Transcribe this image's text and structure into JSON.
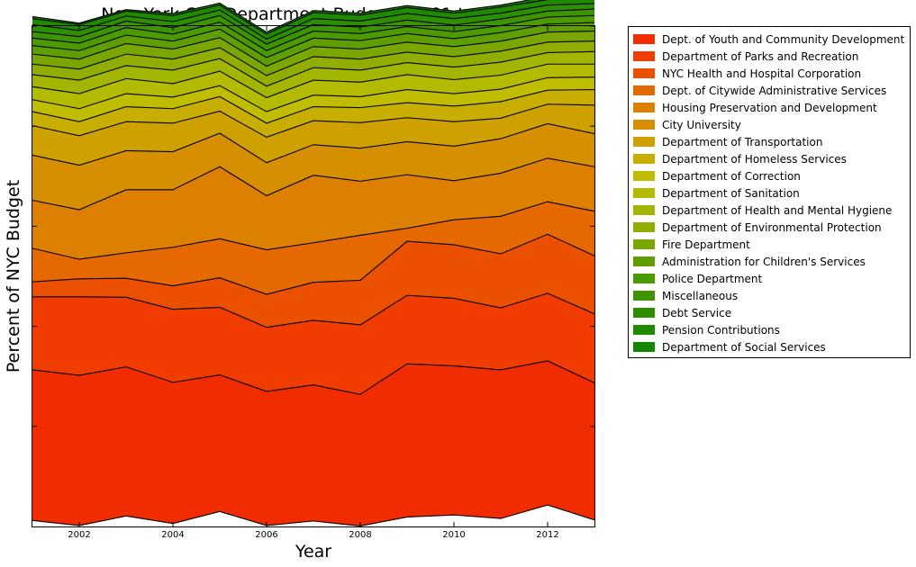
{
  "chart_data": {
    "type": "area",
    "stacked": true,
    "title": "New York City Department Budgets 2001 to 2013",
    "xlabel": "Year",
    "ylabel": "Percent of NYC Budget",
    "x": [
      2001,
      2002,
      2003,
      2004,
      2005,
      2006,
      2007,
      2008,
      2009,
      2010,
      2011,
      2012,
      2013
    ],
    "xticks": [
      2002,
      2004,
      2006,
      2008,
      2010,
      2012
    ],
    "xlim": [
      2001,
      2013
    ],
    "ylim": [
      0,
      100
    ],
    "y_tick_labels_shown": false,
    "grid": false,
    "legend_position": "outside-right",
    "baseline": [
      1.2,
      0.2,
      2.1,
      0.6,
      3.0,
      0.2,
      1.1,
      0.1,
      1.9,
      2.3,
      1.6,
      4.3,
      1.3
    ],
    "series": [
      {
        "name": "Dept. of Youth and Community Development",
        "color": "#f12c00",
        "values": [
          30.1,
          30.0,
          29.8,
          28.2,
          27.3,
          26.8,
          27.2,
          26.3,
          30.6,
          29.8,
          29.7,
          28.8,
          27.4
        ]
      },
      {
        "name": "Department of Parks and Recreation",
        "color": "#f03c00",
        "values": [
          14.6,
          15.7,
          13.9,
          14.6,
          13.5,
          12.8,
          12.9,
          13.9,
          13.7,
          13.5,
          12.4,
          13.5,
          13.8
        ]
      },
      {
        "name": "NYC Health and Hospital Corporation",
        "color": "#ea5000",
        "values": [
          3.0,
          3.6,
          3.8,
          4.7,
          5.9,
          6.6,
          7.6,
          8.9,
          10.8,
          10.7,
          10.8,
          11.8,
          11.6
        ]
      },
      {
        "name": "Dept. of Citywide Administrative Services",
        "color": "#e56800",
        "values": [
          6.7,
          3.9,
          5.1,
          7.7,
          7.8,
          8.9,
          7.9,
          9.0,
          2.6,
          5.0,
          7.5,
          6.5,
          8.9
        ]
      },
      {
        "name": "Housing Preservation and Development",
        "color": "#dd7f00",
        "values": [
          9.6,
          9.9,
          12.6,
          11.5,
          14.4,
          10.8,
          13.5,
          10.8,
          10.7,
          7.8,
          8.6,
          8.7,
          8.9
        ]
      },
      {
        "name": "City University",
        "color": "#d68f00",
        "values": [
          9.0,
          8.9,
          7.8,
          7.6,
          6.7,
          6.6,
          6.1,
          6.6,
          6.6,
          6.9,
          6.9,
          6.9,
          6.6
        ]
      },
      {
        "name": "Department of Transportation",
        "color": "#cea100",
        "values": [
          5.9,
          5.9,
          5.8,
          5.7,
          4.4,
          5.1,
          4.8,
          5.1,
          4.8,
          4.9,
          4.1,
          3.9,
          5.7
        ]
      },
      {
        "name": "Department of Homeless Services",
        "color": "#c8ae00",
        "values": [
          2.8,
          2.8,
          3.0,
          2.9,
          2.9,
          2.8,
          2.8,
          3.0,
          3.0,
          3.1,
          3.3,
          2.8,
          3.1
        ]
      },
      {
        "name": "Department of Correction",
        "color": "#c0bc00",
        "values": [
          2.4,
          2.6,
          2.6,
          2.3,
          2.2,
          2.3,
          2.3,
          2.2,
          2.6,
          2.5,
          2.5,
          2.5,
          2.5
        ]
      },
      {
        "name": "Department of Sanitation",
        "color": "#b3bb00",
        "values": [
          2.6,
          3.0,
          3.0,
          2.7,
          2.9,
          2.8,
          3.0,
          2.9,
          3.0,
          2.8,
          2.8,
          2.7,
          2.6
        ]
      },
      {
        "name": "Department of Health and Mental Hygiene",
        "color": "#a2b500",
        "values": [
          2.4,
          2.7,
          2.6,
          2.7,
          2.5,
          2.3,
          2.5,
          2.4,
          2.4,
          2.5,
          2.6,
          2.3,
          2.5
        ]
      },
      {
        "name": "Department of Environmental Protection",
        "color": "#90ad00",
        "values": [
          2.1,
          2.2,
          2.3,
          2.2,
          2.2,
          2.1,
          2.2,
          2.2,
          2.1,
          2.1,
          2.2,
          2.1,
          2.1
        ]
      },
      {
        "name": "Fire Department",
        "color": "#7aa600",
        "values": [
          2.0,
          2.0,
          2.1,
          2.0,
          2.0,
          1.9,
          2.0,
          2.0,
          2.0,
          2.0,
          2.0,
          2.0,
          2.0
        ]
      },
      {
        "name": "Administration for Children's Services",
        "color": "#5f9e00",
        "values": [
          1.7,
          1.7,
          1.7,
          1.6,
          1.7,
          1.7,
          1.7,
          1.7,
          1.7,
          1.6,
          1.7,
          1.6,
          1.7
        ]
      },
      {
        "name": "Police Department",
        "color": "#4b9a00",
        "values": [
          1.5,
          1.5,
          1.5,
          1.4,
          1.4,
          1.4,
          1.4,
          1.4,
          1.4,
          1.4,
          1.4,
          1.4,
          1.4
        ]
      },
      {
        "name": "Miscellaneous",
        "color": "#3e9400",
        "values": [
          1.3,
          1.3,
          1.3,
          1.3,
          1.3,
          1.3,
          1.3,
          1.3,
          1.3,
          1.3,
          1.3,
          1.2,
          1.3
        ]
      },
      {
        "name": "Debt Service",
        "color": "#2c8e00",
        "values": [
          1.4,
          1.2,
          1.0,
          1.2,
          1.1,
          1.0,
          1.2,
          1.2,
          1.3,
          1.3,
          1.2,
          1.2,
          1.1
        ]
      },
      {
        "name": "Pension Contributions",
        "color": "#1f8a00",
        "values": [
          1.2,
          1.2,
          1.0,
          1.2,
          1.0,
          1.0,
          1.2,
          1.2,
          1.2,
          1.1,
          1.2,
          1.1,
          0.9
        ]
      },
      {
        "name": "Department of Social Services",
        "color": "#148500",
        "values": [
          0.4,
          0.3,
          0.3,
          0.4,
          0.4,
          0.4,
          0.4,
          0.4,
          0.4,
          0.4,
          0.4,
          0.6,
          0.2
        ]
      }
    ]
  }
}
